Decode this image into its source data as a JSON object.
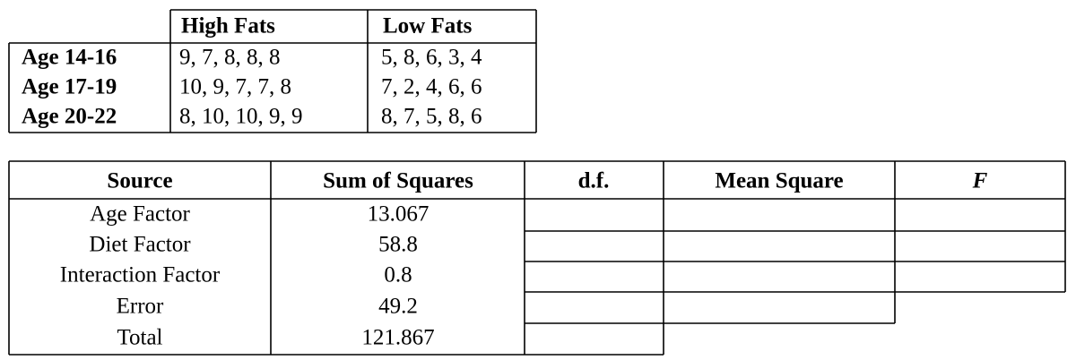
{
  "diet_table": {
    "columns": [
      "High Fats",
      "Low Fats"
    ],
    "rows": [
      {
        "label": "Age 14-16",
        "cells": [
          "9, 7, 8, 8, 8",
          "5, 8, 6, 3, 4"
        ]
      },
      {
        "label": "Age 17-19",
        "cells": [
          "10, 9, 7, 7, 8",
          "7, 2, 4, 6, 6"
        ]
      },
      {
        "label": "Age 20-22",
        "cells": [
          "8, 10, 10, 9, 9",
          "8, 7, 5, 8, 6"
        ]
      }
    ]
  },
  "anova_table": {
    "columns": [
      "Source",
      "Sum of Squares",
      "d.f.",
      "Mean Square",
      "F"
    ],
    "rows": [
      {
        "source": "Age Factor",
        "sum_of_squares": "13.067"
      },
      {
        "source": "Diet Factor",
        "sum_of_squares": "58.8"
      },
      {
        "source": "Interaction Factor",
        "sum_of_squares": "0.8"
      },
      {
        "source": "Error",
        "sum_of_squares": "49.2"
      },
      {
        "source": "Total",
        "sum_of_squares": "121.867"
      }
    ]
  }
}
